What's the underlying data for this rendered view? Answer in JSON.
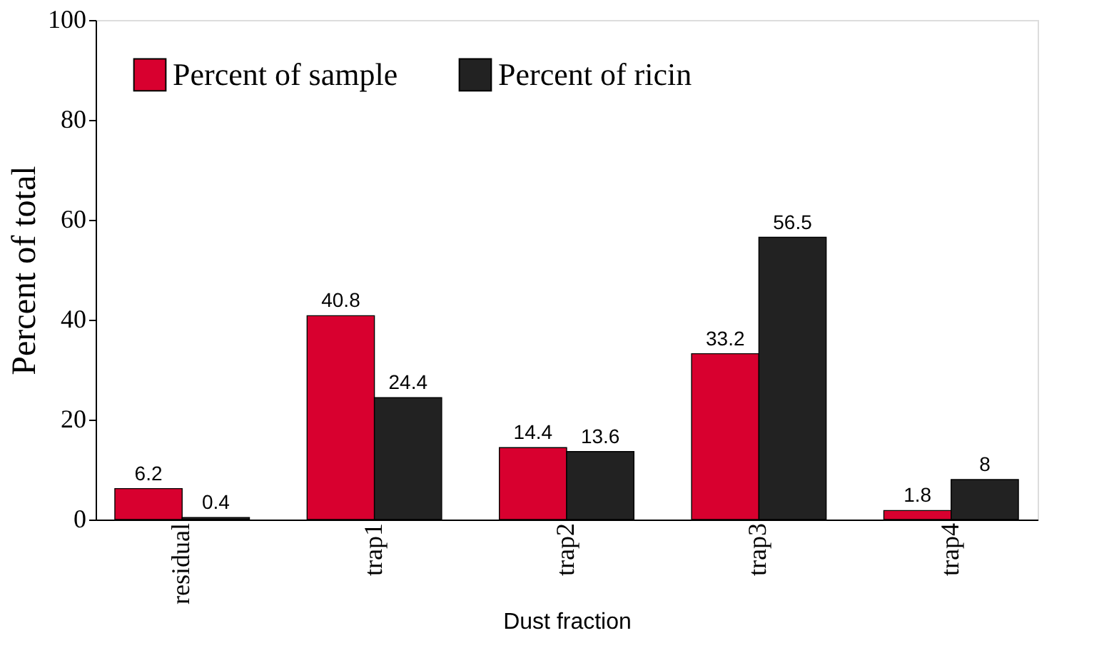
{
  "chart_data": {
    "type": "bar",
    "xlabel": "Dust fraction",
    "ylabel": "Percent of total",
    "categories": [
      "residual",
      "trap1",
      "trap2",
      "trap3",
      "trap4"
    ],
    "series": [
      {
        "name": "Percent of sample",
        "color": "#d8002f",
        "values": [
          6.2,
          40.8,
          14.4,
          33.2,
          1.8
        ]
      },
      {
        "name": "Percent of ricin",
        "color": "#222222",
        "values": [
          0.4,
          24.4,
          13.6,
          56.5,
          8
        ]
      }
    ],
    "ylim": [
      0,
      100
    ],
    "yticks": [
      0,
      20,
      40,
      60,
      80,
      100
    ],
    "grid": false,
    "legend": "top left",
    "data_labels": true
  }
}
